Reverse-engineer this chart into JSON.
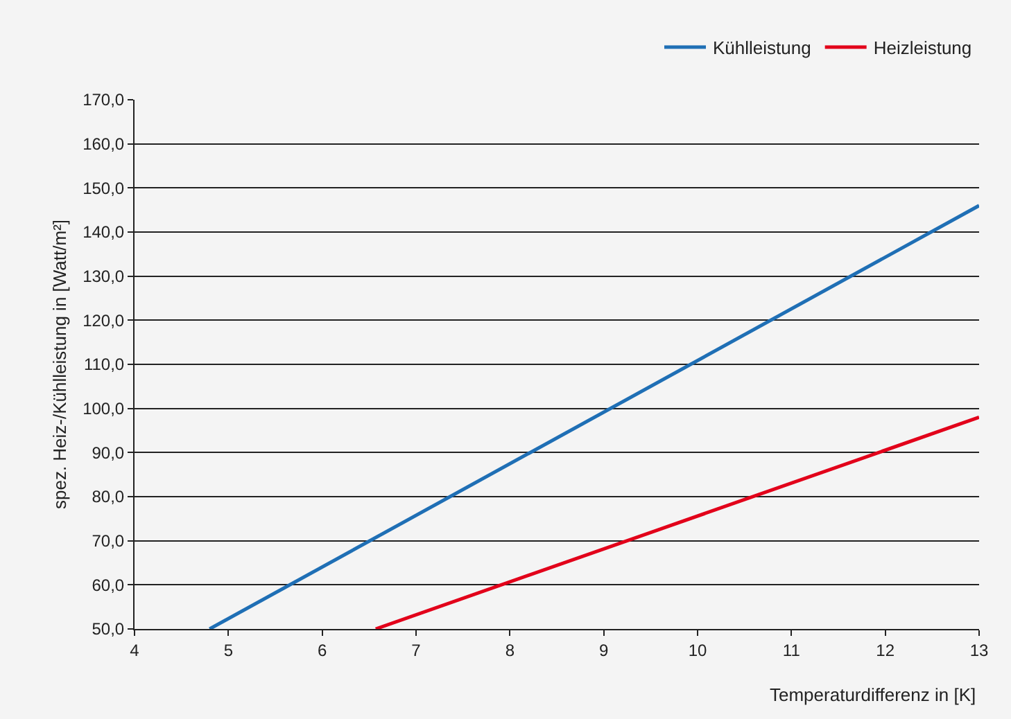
{
  "chart_data": {
    "type": "line",
    "xlabel": "Temperaturdifferenz in [K]",
    "ylabel": "spez. Heiz-/Kühlleistung in [Watt/m²]",
    "series": [
      {
        "name": "Kühlleistung",
        "color": "#1f6fb5",
        "x": [
          4.8,
          13
        ],
        "values": [
          50,
          146
        ]
      },
      {
        "name": "Heizleistung",
        "color": "#e2001a",
        "x": [
          6.57,
          13
        ],
        "values": [
          50,
          98
        ]
      }
    ],
    "xlim": [
      4,
      13
    ],
    "xticks": [
      4,
      5,
      6,
      7,
      8,
      9,
      10,
      11,
      12,
      13
    ],
    "ylim": [
      50,
      170
    ],
    "yticks": [
      {
        "value": 50,
        "label": "50,0"
      },
      {
        "value": 60,
        "label": "60,0"
      },
      {
        "value": 70,
        "label": "70,0"
      },
      {
        "value": 80,
        "label": "80,0"
      },
      {
        "value": 90,
        "label": "90,0"
      },
      {
        "value": 100,
        "label": "100,0"
      },
      {
        "value": 110,
        "label": "110,0"
      },
      {
        "value": 120,
        "label": "120,0"
      },
      {
        "value": 130,
        "label": "130,0"
      },
      {
        "value": 140,
        "label": "140,0"
      },
      {
        "value": 150,
        "label": "150,0"
      },
      {
        "value": 160,
        "label": "160,0"
      },
      {
        "value": 170,
        "label": "170,0"
      }
    ],
    "grid": "y",
    "legend": "top right",
    "marker": "none",
    "line_style": "solid"
  }
}
